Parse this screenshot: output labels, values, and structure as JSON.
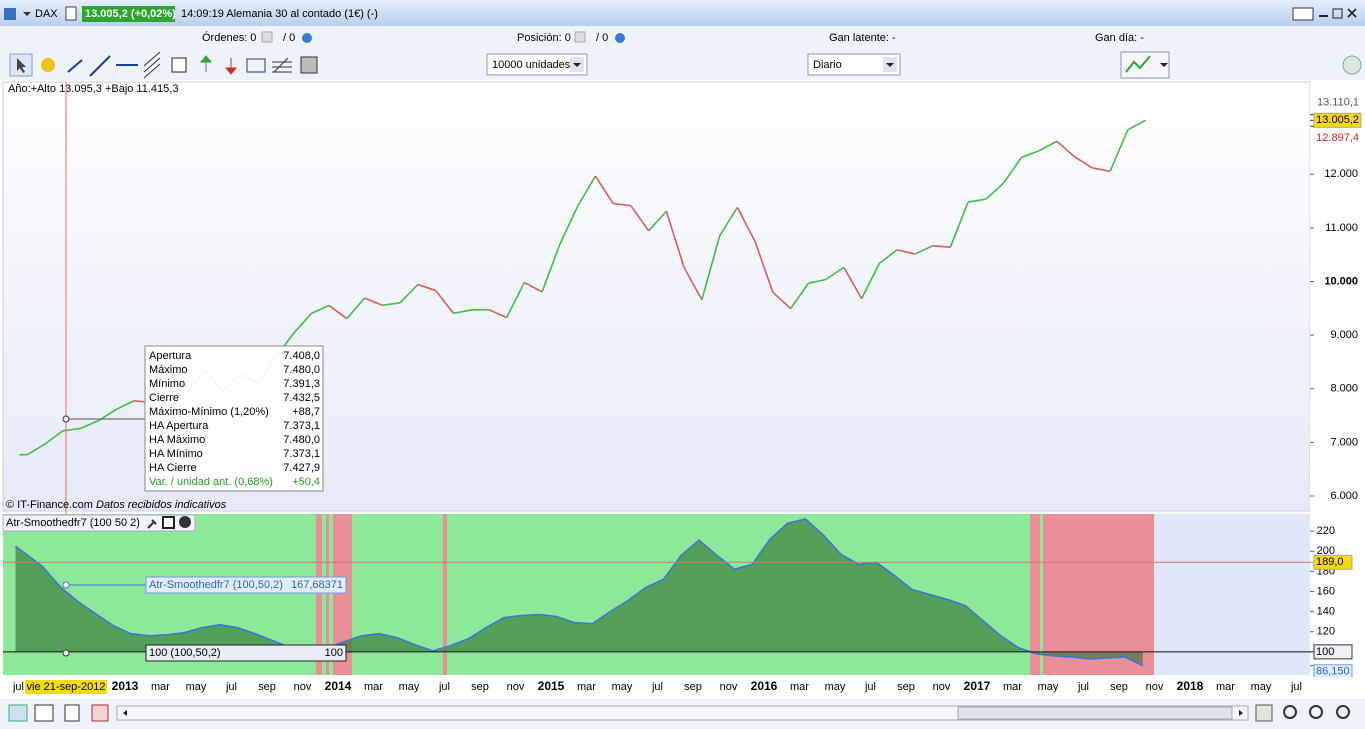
{
  "window": {
    "symbol": "DAX",
    "price": "13.005,2 (+0,02%)",
    "description": "14:09:19 Alemania 30 al contado (1€) (-)"
  },
  "info_bar": [
    "Órdenes: 0",
    "/ 0",
    "Posición: 0",
    "/ 0",
    "Gan latente: -",
    "Gan día: -"
  ],
  "toolbar": {
    "quantity": "10000 unidades",
    "period": "Diario"
  },
  "price_chart": {
    "type": "line",
    "header": "Año:+Alto 13.095,3 +Bajo 11.415,3",
    "source": "© IT-Finance.com",
    "source_note": "Datos recibidos indicativos",
    "values": [
      6770,
      6970,
      7216,
      7260,
      7405,
      7612,
      7776,
      7742,
      7795,
      7914,
      8348,
      7959,
      8276,
      8103,
      8594,
      9033,
      9405,
      9552,
      9306,
      9692,
      9556,
      9603,
      9943,
      9833,
      9407,
      9470,
      9474,
      9326,
      9980,
      9806,
      10694,
      11402,
      11966,
      11454,
      11414,
      10945,
      11309,
      10259,
      9660,
      10850,
      11382,
      10743,
      9798,
      9495,
      9966,
      10039,
      10263,
      9680,
      10337,
      10592,
      10511,
      10665,
      10640,
      11481,
      11535,
      11834,
      12313,
      12438,
      12615,
      12325,
      12118,
      12056,
      12829,
      13005
    ],
    "up_color": "#3fbf3f",
    "down_color": "#e05a5a",
    "ylim": [
      5720,
      13720
    ],
    "yticks": [
      {
        "value": 6000,
        "label": "6.000"
      },
      {
        "value": 7000,
        "label": "7.000"
      },
      {
        "value": 8000,
        "label": "8.000"
      },
      {
        "value": 9000,
        "label": "9.000"
      },
      {
        "value": 10000,
        "label": "10.000"
      },
      {
        "value": 11000,
        "label": "11.000"
      },
      {
        "value": 12000,
        "label": "12.000"
      }
    ],
    "axis_tags": [
      {
        "value": 13110.1,
        "label": "13.110,1"
      },
      {
        "value": 13005.2,
        "label": "13.005,2"
      },
      {
        "value": 12897.4,
        "label": "12.897,4"
      }
    ],
    "tooltip": {
      "rows": [
        [
          "Apertura",
          "7.408,0"
        ],
        [
          "Máximo",
          "7.480,0"
        ],
        [
          "Mínimo",
          "7.391,3"
        ],
        [
          "Cierre",
          "7.432,5"
        ],
        [
          "Máximo-Mínimo (1,20%)",
          "+88,7"
        ],
        [
          "HA Apertura",
          "7.373,1"
        ],
        [
          "HA Máximo",
          "7.480,0"
        ],
        [
          "HA Mínimo",
          "7.373,1"
        ],
        [
          "HA Cierre",
          "7.427,9"
        ],
        [
          "Var. / unidad ant. (0,68%)",
          "+50,4"
        ]
      ]
    }
  },
  "indicator": {
    "type": "area",
    "title": "Atr-Smoothedfr7 (100 50 2)",
    "values": [
      205,
      185,
      165,
      150,
      138,
      126,
      118,
      116,
      117,
      119,
      124,
      127,
      124,
      118,
      111,
      104,
      100,
      103,
      110,
      116,
      118,
      114,
      107,
      101,
      106,
      113,
      124,
      134,
      136,
      137,
      135,
      129,
      128,
      140,
      151,
      164,
      172,
      196,
      211,
      196,
      182,
      187,
      212,
      228,
      232,
      216,
      197,
      187,
      189,
      176,
      162,
      157,
      152,
      146,
      131,
      116,
      104,
      98,
      96,
      95,
      93,
      94,
      95,
      86.15
    ],
    "line_color": "#3a78d8",
    "fill_color": "#2f6f2f",
    "ylim": [
      77,
      237
    ],
    "yticks": [
      120,
      140,
      160,
      180,
      200,
      220
    ],
    "axis_tags": [
      {
        "value": 189,
        "label": "189,0"
      },
      {
        "value": 100,
        "label": "100"
      },
      {
        "value": 86.15,
        "label": "86,150"
      }
    ],
    "series_label": "Atr-Smoothedfr7 (100,50,2)",
    "series_value": "167,68371",
    "level_label": "100 (100,50,2)",
    "level_value": "100"
  },
  "x_axis": {
    "labels": [
      "jul",
      "vie 21-sep-2012",
      null,
      "2013",
      "mar",
      "may",
      "jul",
      "sep",
      "nov",
      "2014",
      "mar",
      "may",
      "jul",
      "sep",
      "nov",
      "2015",
      "mar",
      "may",
      "jul",
      "sep",
      "nov",
      "2016",
      "mar",
      "may",
      "jul",
      "sep",
      "nov",
      "2017",
      "mar",
      "may",
      "jul",
      "sep",
      "nov",
      "2018",
      "mar",
      "may",
      "jul"
    ]
  }
}
